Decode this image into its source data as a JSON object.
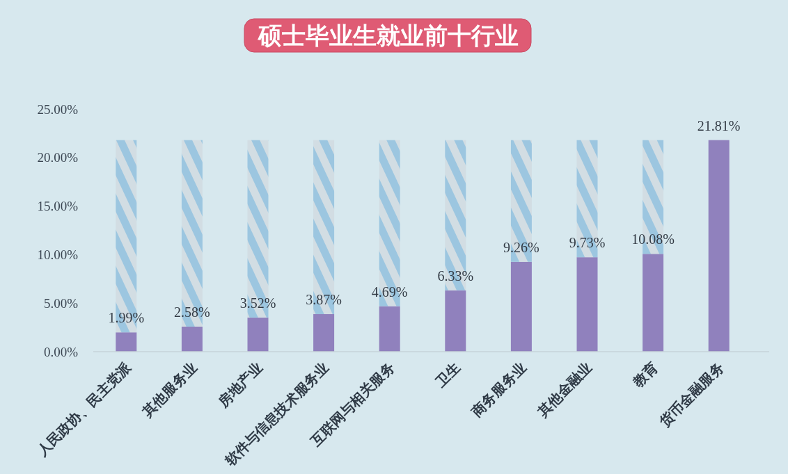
{
  "chart_data": {
    "type": "bar",
    "title": "硕士毕业生就业前十行业",
    "categories": [
      "人民政协、民主党派",
      "其他服务业",
      "房地产业",
      "软件与信息技术服务业",
      "互联网与相关服务",
      "卫生",
      "商务服务业",
      "其他金融业",
      "教育",
      "货币金融服务"
    ],
    "series": [
      {
        "color": "#9081bd",
        "values": [
          1.99,
          2.58,
          3.52,
          3.87,
          4.69,
          6.33,
          9.26,
          9.73,
          10.08,
          21.81
        ],
        "value_labels": [
          "1.99%",
          "2.58%",
          "3.52%",
          "3.87%",
          "4.69%",
          "6.33%",
          "9.26%",
          "9.73%",
          "10.08%",
          "21.81%"
        ]
      },
      {
        "color": "#9cc6e0",
        "values": [
          19.82,
          19.23,
          18.29,
          17.94,
          17.12,
          15.48,
          12.55,
          12.08,
          11.73,
          null
        ]
      }
    ],
    "stacked": true,
    "ylim": [
      0,
      25
    ],
    "yticks": [
      {
        "value": 0,
        "label": "0.00%"
      },
      {
        "value": 5,
        "label": "5.00%"
      },
      {
        "value": 10,
        "label": "10.00%"
      },
      {
        "value": 15,
        "label": "15.00%"
      },
      {
        "value": 20,
        "label": "20.00%"
      },
      {
        "value": 25,
        "label": "25.00%"
      }
    ]
  }
}
